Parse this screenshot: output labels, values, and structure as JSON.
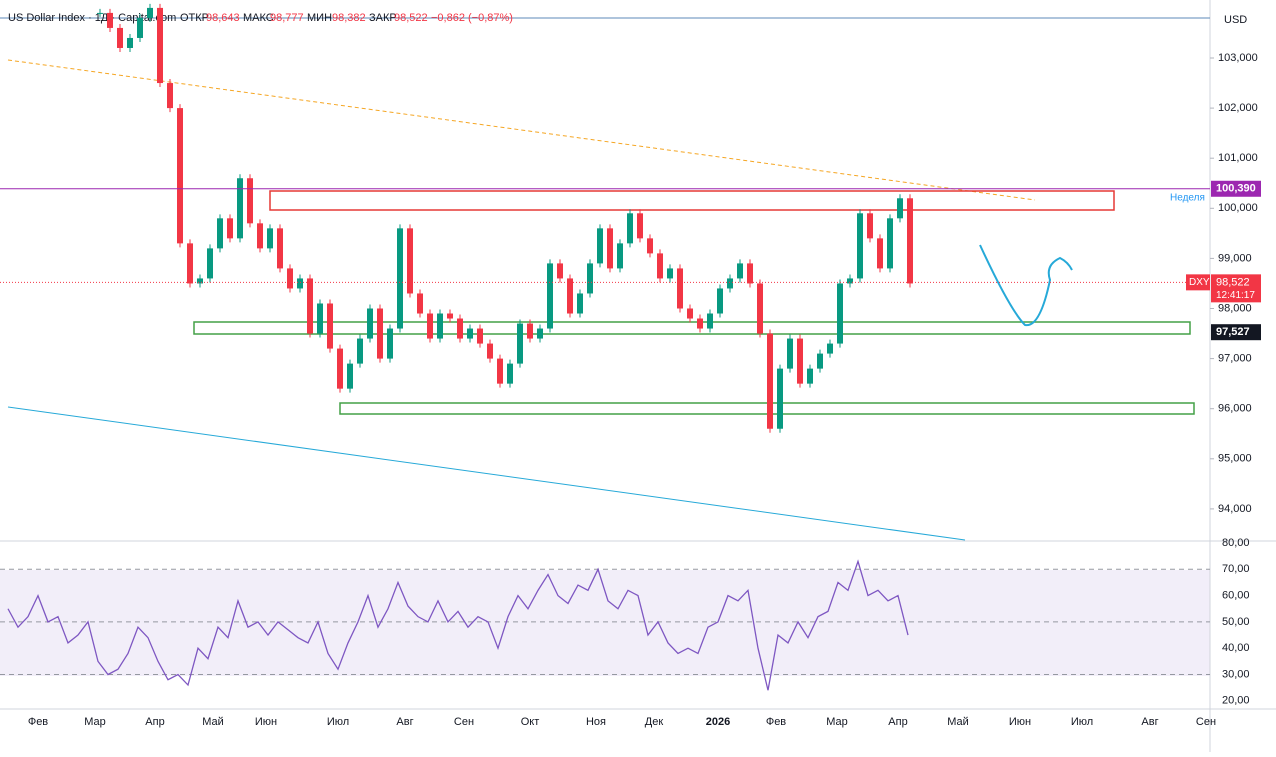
{
  "header": {
    "symbol": "US Dollar Index · 1Д · Capital.com",
    "open_label": "ОТКР",
    "open": "98,643",
    "high_label": "МАКС",
    "high": "98,777",
    "low_label": "МИН",
    "low": "98,382",
    "close_label": "ЗАКР",
    "close": "98,522",
    "change": "−0,862 (−0,87%)"
  },
  "price_axis": {
    "currency": "USD",
    "ticks": [
      {
        "value": 103,
        "label": "103,000"
      },
      {
        "value": 102,
        "label": "102,000"
      },
      {
        "value": 101,
        "label": "101,000"
      },
      {
        "value": 100,
        "label": "100,000"
      },
      {
        "value": 99,
        "label": "99,000"
      },
      {
        "value": 98,
        "label": "98,000"
      },
      {
        "value": 97,
        "label": "97,000"
      },
      {
        "value": 96,
        "label": "96,000"
      },
      {
        "value": 95,
        "label": "95,000"
      },
      {
        "value": 94,
        "label": "94,000"
      }
    ]
  },
  "tags": {
    "week_level": {
      "value": 100.39,
      "label": "100,390",
      "note": "Неделя"
    },
    "symbol": "DXY",
    "last": {
      "value": 98.522,
      "label": "98,522",
      "timer": "12:41:17"
    },
    "support": {
      "value": 97.527,
      "label": "97,527"
    }
  },
  "price_series": {
    "closes": [
      103.9,
      103.6,
      103.2,
      103.4,
      103.8,
      104.0,
      102.5,
      102.0,
      99.3,
      98.5,
      98.6,
      99.2,
      99.8,
      99.4,
      100.6,
      99.7,
      99.2,
      99.6,
      98.8,
      98.4,
      98.6,
      97.5,
      98.1,
      97.2,
      96.4,
      96.9,
      97.4,
      98.0,
      97.0,
      97.6,
      99.6,
      98.3,
      97.9,
      97.4,
      97.9,
      97.8,
      97.4,
      97.6,
      97.3,
      97.0,
      96.5,
      96.9,
      97.7,
      97.4,
      97.6,
      98.9,
      98.6,
      97.9,
      98.3,
      98.9,
      99.6,
      98.8,
      99.3,
      99.9,
      99.4,
      99.1,
      98.6,
      98.8,
      98.0,
      97.8,
      97.6,
      97.9,
      98.4,
      98.6,
      98.9,
      98.5,
      97.5,
      95.6,
      96.8,
      97.4,
      96.5,
      96.8,
      97.1,
      97.3,
      98.5,
      98.6,
      99.9,
      99.4,
      98.8,
      99.8,
      100.2,
      98.5
    ]
  },
  "rsi": {
    "ticks": [
      {
        "value": 80,
        "label": "80,00"
      },
      {
        "value": 70,
        "label": "70,00"
      },
      {
        "value": 60,
        "label": "60,00"
      },
      {
        "value": 50,
        "label": "50,00"
      },
      {
        "value": 40,
        "label": "40,00"
      },
      {
        "value": 30,
        "label": "30,00"
      },
      {
        "value": 20,
        "label": "20,00"
      }
    ],
    "values": [
      55,
      48,
      52,
      60,
      50,
      52,
      42,
      45,
      50,
      35,
      30,
      32,
      38,
      48,
      44,
      35,
      28,
      30,
      26,
      40,
      36,
      48,
      44,
      58,
      48,
      50,
      45,
      50,
      47,
      44,
      42,
      50,
      38,
      32,
      42,
      50,
      60,
      48,
      55,
      65,
      56,
      52,
      50,
      58,
      50,
      54,
      48,
      52,
      50,
      40,
      52,
      60,
      55,
      62,
      68,
      60,
      57,
      64,
      62,
      70,
      58,
      55,
      62,
      60,
      45,
      50,
      42,
      38,
      40,
      38,
      48,
      50,
      60,
      58,
      62,
      40,
      24,
      45,
      42,
      50,
      44,
      52,
      54,
      65,
      62,
      73,
      60,
      62,
      58,
      60,
      45
    ]
  },
  "time_axis": [
    "Фев",
    "Мар",
    "Апр",
    "Май",
    "Июн",
    "Июл",
    "Авг",
    "Сен",
    "Окт",
    "Ноя",
    "Дек",
    "2026",
    "Фев",
    "Мар",
    "Апр",
    "Май",
    "Июн",
    "Июл",
    "Авг",
    "Сен"
  ]
}
